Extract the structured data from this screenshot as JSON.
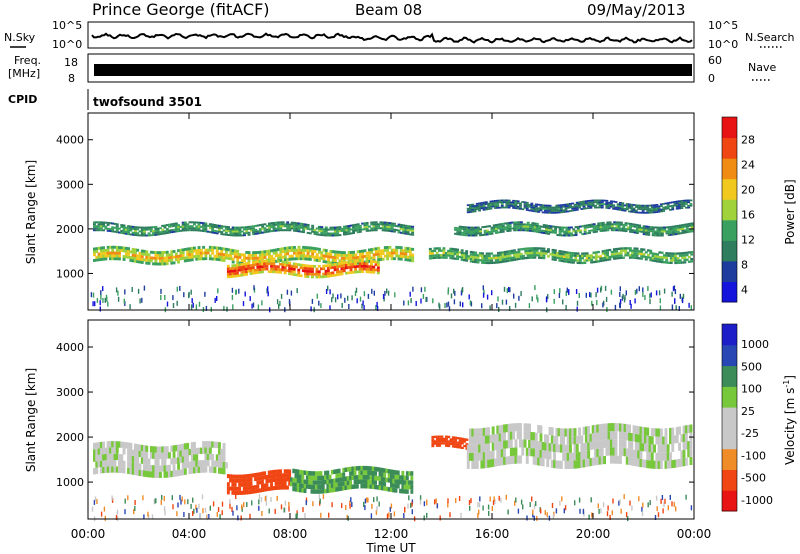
{
  "header": {
    "station": "Prince George (fitACF)",
    "beam": "Beam 08",
    "date": "09/May/2013"
  },
  "noise_panel": {
    "left_label": "N.Sky",
    "right_label": "N.Search",
    "left_ticks": [
      "10^5",
      "10^0"
    ],
    "right_ticks": [
      "10^5",
      "10^0"
    ]
  },
  "freq_panel": {
    "left_label_1": "Freq.",
    "left_label_2": "[MHz]",
    "right_label": "Nave",
    "left_ticks": [
      "18",
      "8"
    ],
    "right_ticks": [
      "60",
      "0"
    ]
  },
  "cpid_panel": {
    "label": "CPID",
    "value": "twofsound 3501"
  },
  "x_axis": {
    "label": "Time UT",
    "ticks": [
      "00:00",
      "04:00",
      "08:00",
      "12:00",
      "16:00",
      "20:00",
      "00:00"
    ]
  },
  "colors": {
    "power_scale": [
      "#1414dc",
      "#1e3c9e",
      "#2e7d5e",
      "#3aa060",
      "#a0d23c",
      "#f0c81e",
      "#f08c14",
      "#f04614",
      "#e81414"
    ],
    "velocity_scale": [
      "#e81414",
      "#f04614",
      "#f08c28",
      "#c8c8c8",
      "#c8c8c8",
      "#78c83c",
      "#3c8c5a",
      "#2846b4",
      "#1e1ec8"
    ],
    "noise_trace": "#000000",
    "freq_band": "#000000"
  },
  "chart_data": [
    {
      "type": "heatmap",
      "title": "Power",
      "xlabel": "Time UT",
      "ylabel": "Slant Range [km]",
      "xlim": [
        0,
        24
      ],
      "ylim": [
        180,
        4600
      ],
      "yticks": [
        1000,
        2000,
        3000,
        4000
      ],
      "colorbar": {
        "label": "Power [dB]",
        "range": [
          0,
          32
        ],
        "tick_labels": [
          "28",
          "24",
          "20",
          "16",
          "12",
          "8",
          "4"
        ],
        "tick_values": [
          28,
          24,
          20,
          16,
          12,
          8,
          4
        ]
      },
      "bands": [
        {
          "t_start": 0.2,
          "t_end": 12.8,
          "range_km": 1400,
          "width_km": 320,
          "value": 20
        },
        {
          "t_start": 0.2,
          "t_end": 12.8,
          "range_km": 2000,
          "width_km": 220,
          "value": 12
        },
        {
          "t_start": 5.5,
          "t_end": 11.5,
          "range_km": 1100,
          "width_km": 300,
          "value": 28
        },
        {
          "t_start": 13.5,
          "t_end": 23.9,
          "range_km": 1400,
          "width_km": 260,
          "value": 14
        },
        {
          "t_start": 14.5,
          "t_end": 23.9,
          "range_km": 2000,
          "width_km": 220,
          "value": 12
        },
        {
          "t_start": 15.0,
          "t_end": 23.9,
          "range_km": 2500,
          "width_km": 200,
          "value": 8
        }
      ]
    },
    {
      "type": "heatmap",
      "title": "Velocity",
      "xlabel": "Time UT",
      "ylabel": "Slant Range [km]",
      "xlim": [
        0,
        24
      ],
      "ylim": [
        180,
        4600
      ],
      "yticks": [
        1000,
        2000,
        3000,
        4000
      ],
      "colorbar": {
        "label": "Velocity [m s^-1]",
        "tick_labels": [
          "1000",
          "500",
          "100",
          "25",
          "-25",
          "-100",
          "-500",
          "-1000"
        ],
        "tick_values": [
          1000,
          500,
          100,
          25,
          -25,
          -100,
          -500,
          -1000
        ]
      },
      "bands": [
        {
          "t_start": 0.2,
          "t_end": 5.5,
          "range_km": 1500,
          "width_km": 700,
          "value": 0
        },
        {
          "t_start": 5.5,
          "t_end": 8.0,
          "range_km": 1000,
          "width_km": 450,
          "value": -300
        },
        {
          "t_start": 8.0,
          "t_end": 12.8,
          "range_km": 1050,
          "width_km": 500,
          "value": 100
        },
        {
          "t_start": 13.6,
          "t_end": 15.0,
          "range_km": 1850,
          "width_km": 250,
          "value": -300
        },
        {
          "t_start": 15.0,
          "t_end": 23.9,
          "range_km": 1800,
          "width_km": 900,
          "value": 0
        }
      ]
    }
  ]
}
